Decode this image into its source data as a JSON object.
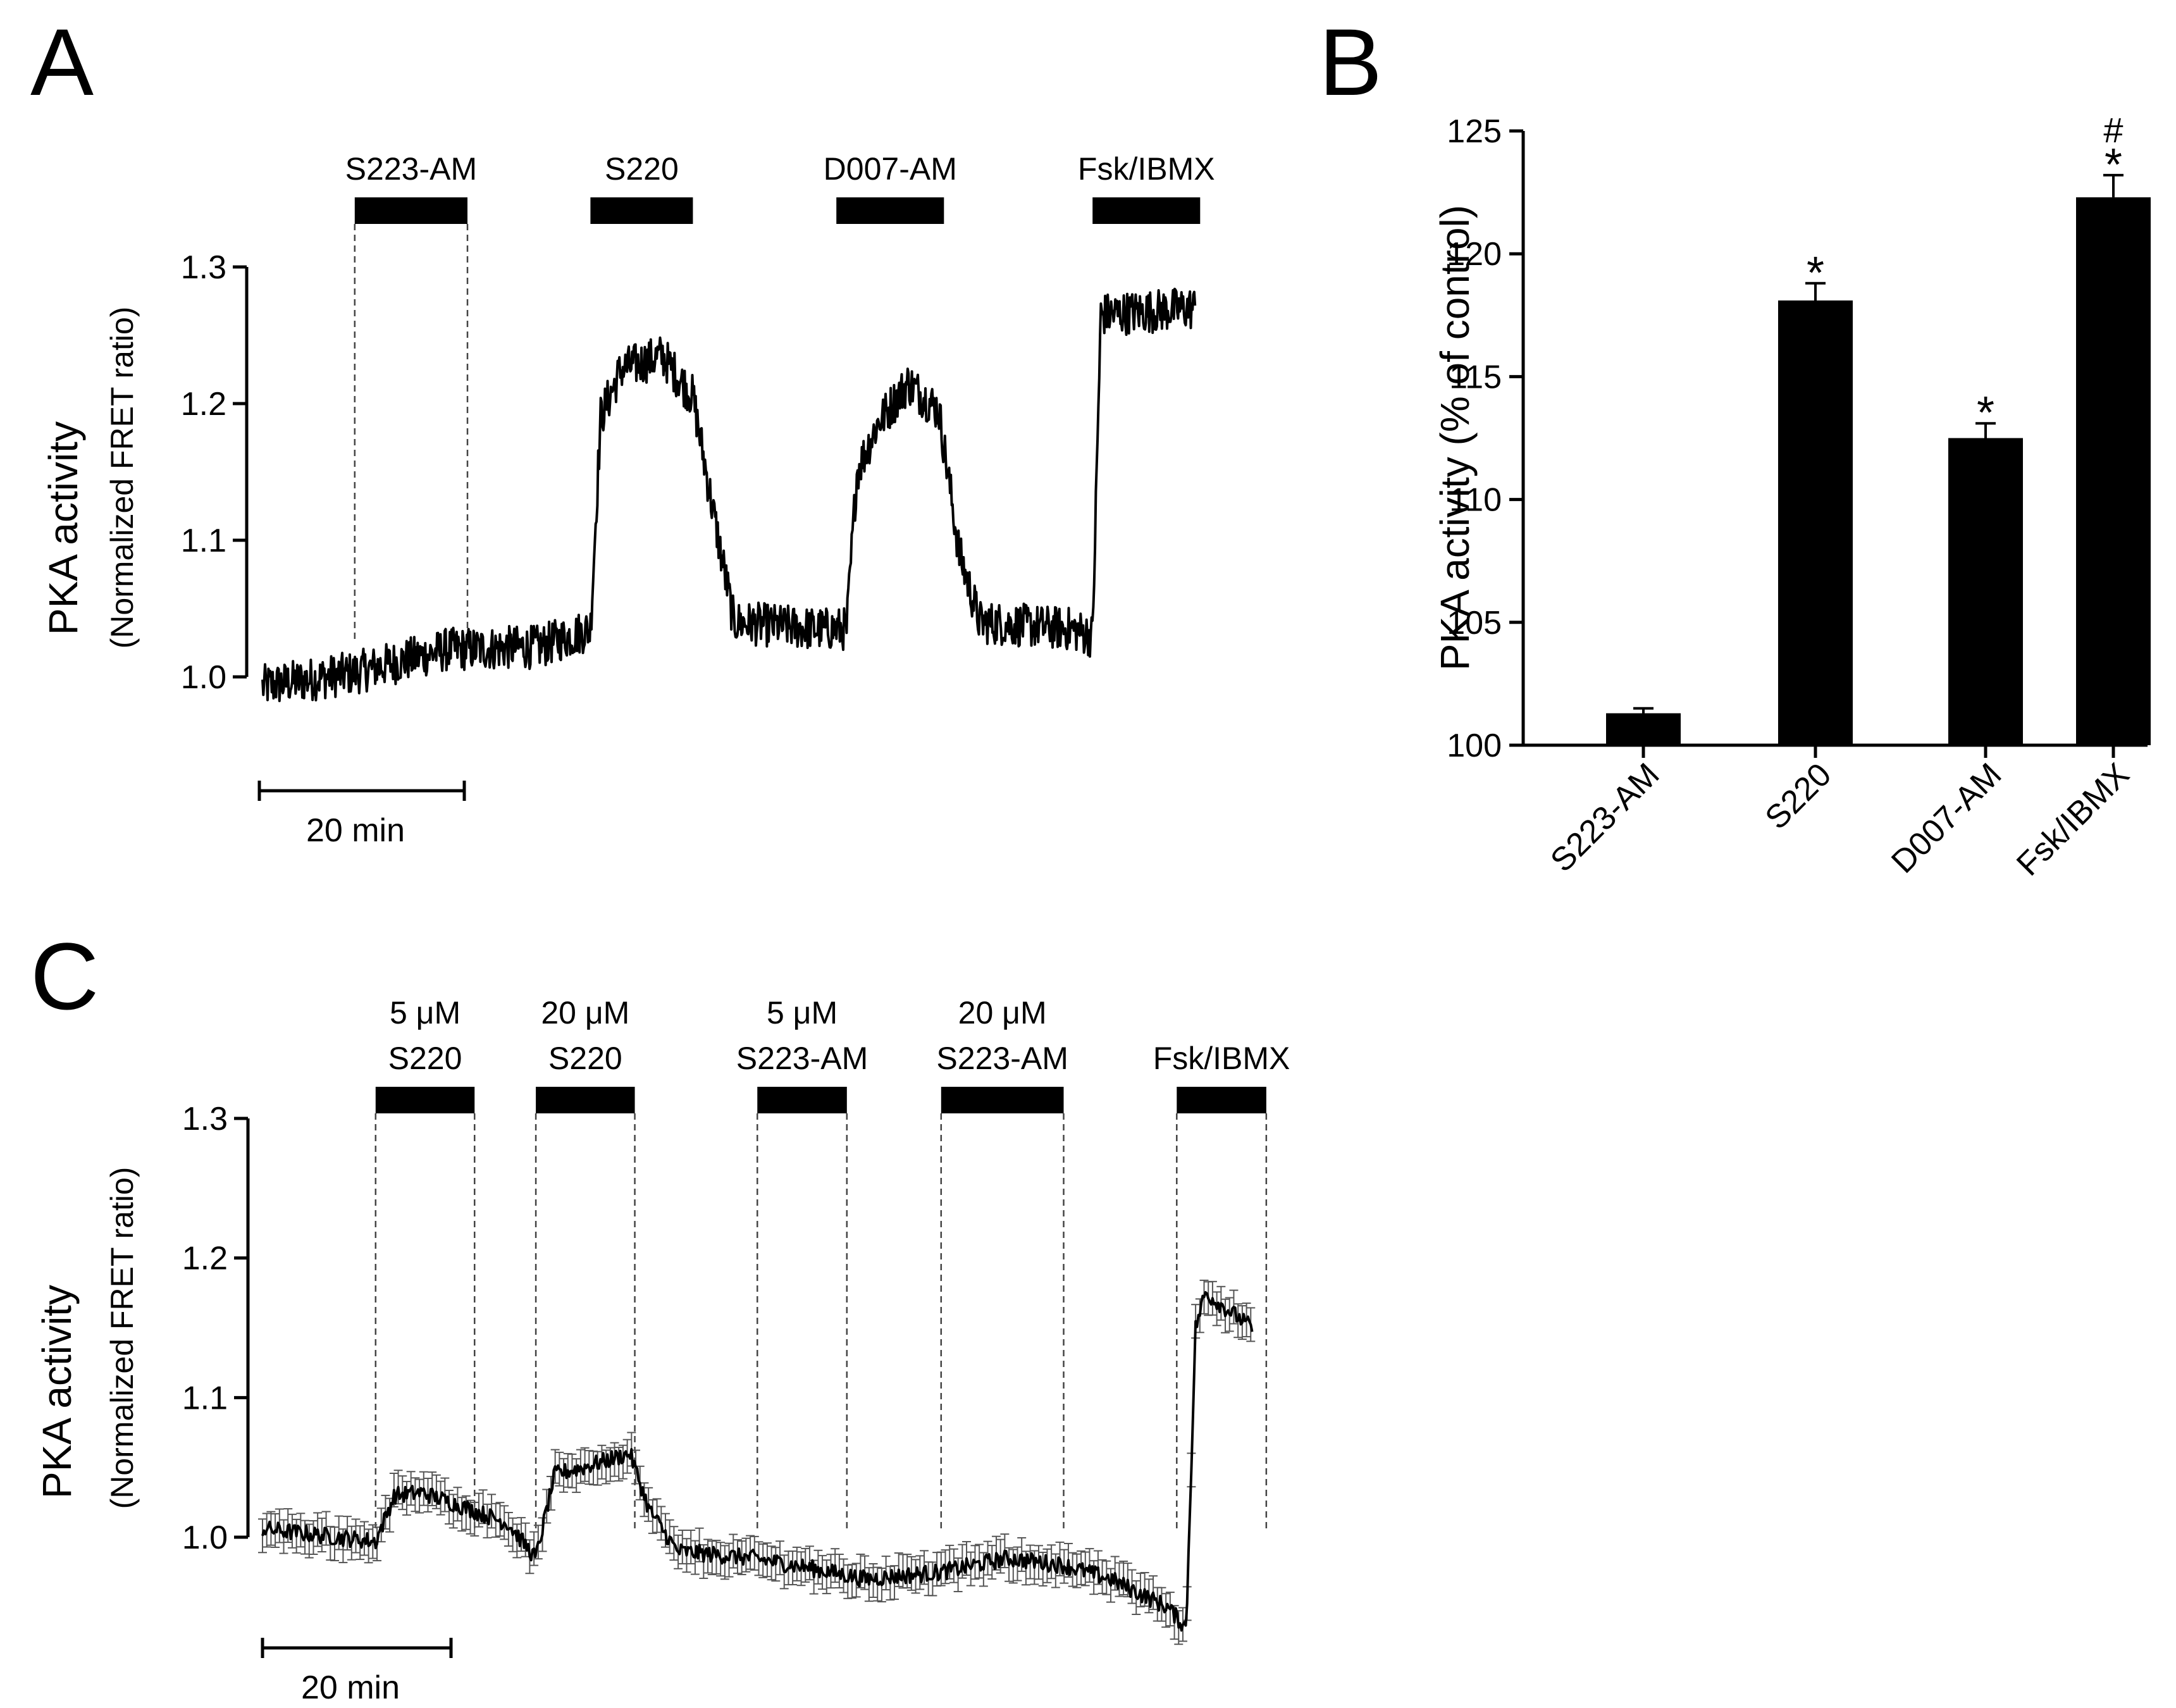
{
  "figure": {
    "panel_labels": {
      "a": "A",
      "b": "B",
      "c": "C"
    },
    "colors": {
      "ink": "#000000",
      "background": "#ffffff",
      "errorbar": "#555555"
    }
  },
  "chart_data": [
    {
      "panel": "A",
      "type": "line",
      "ylabel": "PKA activity",
      "ylabel_sub": "(Normalized FRET ratio)",
      "ylim": [
        1.0,
        1.3
      ],
      "yticks": [
        1.0,
        1.1,
        1.2,
        1.3
      ],
      "ytick_labels": [
        "1.0",
        "1.1",
        "1.2",
        "1.3"
      ],
      "scale_bar": "20 min",
      "scale_bar_minutes": 20,
      "duration_minutes": 91,
      "treatments": [
        {
          "label": "S223-AM",
          "start_min": 9,
          "end_min": 20,
          "guides": true
        },
        {
          "label": "S220",
          "start_min": 32,
          "end_min": 42,
          "guides": false
        },
        {
          "label": "D007-AM",
          "start_min": 56,
          "end_min": 66.5,
          "guides": false
        },
        {
          "label": "Fsk/IBMX",
          "start_min": 81,
          "end_min": 91.5,
          "guides": false
        }
      ],
      "trace_anchors": [
        [
          0,
          0.993
        ],
        [
          9,
          1.003
        ],
        [
          18,
          1.02
        ],
        [
          27,
          1.022
        ],
        [
          32,
          1.035
        ],
        [
          33,
          1.19
        ],
        [
          35,
          1.225
        ],
        [
          39,
          1.235
        ],
        [
          42,
          1.205
        ],
        [
          44,
          1.12
        ],
        [
          46,
          1.04
        ],
        [
          54,
          1.035
        ],
        [
          57,
          1.035
        ],
        [
          58,
          1.15
        ],
        [
          60,
          1.185
        ],
        [
          63,
          1.215
        ],
        [
          66,
          1.195
        ],
        [
          68,
          1.09
        ],
        [
          70,
          1.04
        ],
        [
          79,
          1.035
        ],
        [
          81,
          1.03
        ],
        [
          81.8,
          1.265
        ],
        [
          91,
          1.27
        ]
      ],
      "trace_noise": 0.016
    },
    {
      "panel": "B",
      "type": "bar",
      "ylabel": "PKA activity (% of control)",
      "ylim": [
        100,
        125
      ],
      "yticks": [
        100,
        105,
        110,
        115,
        120,
        125
      ],
      "ytick_labels": [
        "100",
        "105",
        "110",
        "115",
        "120",
        "125"
      ],
      "categories": [
        "S223-AM",
        "S220",
        "D007-AM",
        "Fsk/IBMX"
      ],
      "values": [
        101.3,
        118.1,
        112.5,
        122.3
      ],
      "errors": [
        0.2,
        0.7,
        0.6,
        0.9
      ],
      "annotations": [
        {
          "category": "S220",
          "marks": [
            "*"
          ]
        },
        {
          "category": "D007-AM",
          "marks": [
            "*"
          ]
        },
        {
          "category": "Fsk/IBMX",
          "marks": [
            "#",
            "*"
          ]
        }
      ]
    },
    {
      "panel": "C",
      "type": "line",
      "ylabel": "PKA activity",
      "ylabel_sub": "(Normalized FRET ratio)",
      "ylim": [
        1.0,
        1.3
      ],
      "yticks": [
        1.0,
        1.1,
        1.2,
        1.3
      ],
      "ytick_labels": [
        "1.0",
        "1.1",
        "1.2",
        "1.3"
      ],
      "scale_bar": "20 min",
      "scale_bar_minutes": 20,
      "duration_minutes": 105,
      "treatments": [
        {
          "label_top": "5 μM",
          "label_bottom": "S220",
          "start_min": 12,
          "end_min": 22.5
        },
        {
          "label_top": "20 μM",
          "label_bottom": "S220",
          "start_min": 29,
          "end_min": 39.5
        },
        {
          "label_top": "5 μM",
          "label_bottom": "S223-AM",
          "start_min": 52.5,
          "end_min": 62
        },
        {
          "label_top": "20 μM",
          "label_bottom": "S223-AM",
          "start_min": 72,
          "end_min": 85
        },
        {
          "label_top": "",
          "label_bottom": "Fsk/IBMX",
          "start_min": 97,
          "end_min": 106.5
        }
      ],
      "trace_anchors": [
        [
          0,
          1.006
        ],
        [
          12,
          0.997
        ],
        [
          14,
          1.03
        ],
        [
          17,
          1.032
        ],
        [
          22,
          1.02
        ],
        [
          26,
          1.01
        ],
        [
          29,
          0.985
        ],
        [
          31,
          1.045
        ],
        [
          34,
          1.05
        ],
        [
          39,
          1.06
        ],
        [
          41,
          1.02
        ],
        [
          44,
          0.99
        ],
        [
          52,
          0.985
        ],
        [
          58,
          0.978
        ],
        [
          64,
          0.97
        ],
        [
          72,
          0.975
        ],
        [
          79,
          0.985
        ],
        [
          85,
          0.98
        ],
        [
          90,
          0.97
        ],
        [
          96,
          0.95
        ],
        [
          98,
          0.935
        ],
        [
          99,
          1.15
        ],
        [
          100,
          1.175
        ],
        [
          103,
          1.16
        ],
        [
          106,
          1.145
        ]
      ],
      "trace_noise": 0.006,
      "error_half_width": 0.012
    }
  ]
}
